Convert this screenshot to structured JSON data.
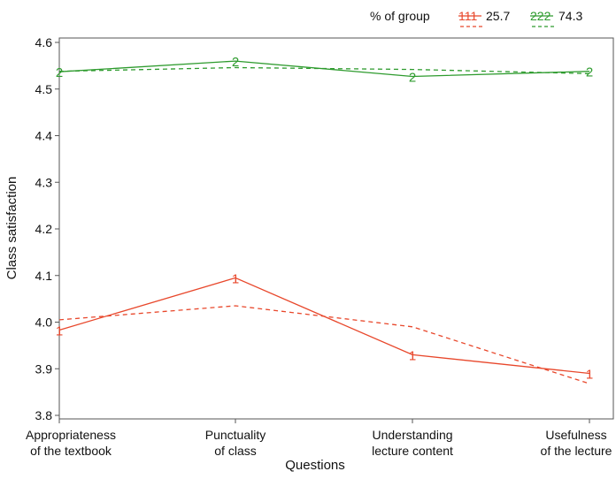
{
  "chart_data": {
    "type": "line",
    "xlabel": "Questions",
    "ylabel": "Class satisfaction",
    "ylim": [
      3.8,
      4.6
    ],
    "yticks": [
      "3.8",
      "3.9",
      "4.0",
      "4.1",
      "4.2",
      "4.3",
      "4.4",
      "4.5",
      "4.6"
    ],
    "categories": [
      [
        "Appropriateness",
        "of the textbook"
      ],
      [
        "Punctuality",
        "of class"
      ],
      [
        "Understanding",
        "lecture content"
      ],
      [
        "Usefulness",
        "of the lecture"
      ]
    ],
    "legend": {
      "title": "% of group",
      "entries": [
        {
          "symbol": "111",
          "value": "25.7"
        },
        {
          "symbol": "222",
          "value": "74.3"
        }
      ]
    },
    "series": [
      {
        "name": "1",
        "marker": "1",
        "color": "#e8472b",
        "style": "solid",
        "values": [
          3.983,
          4.095,
          3.93,
          3.89
        ]
      },
      {
        "name": "1 fitted",
        "color": "#e8472b",
        "style": "dashed",
        "values": [
          4.005,
          4.035,
          3.99,
          3.868
        ]
      },
      {
        "name": "2",
        "marker": "2",
        "color": "#2e9b2e",
        "style": "solid",
        "values": [
          4.537,
          4.56,
          4.527,
          4.538
        ]
      },
      {
        "name": "2 fitted",
        "color": "#2e9b2e",
        "style": "dashed",
        "values": [
          4.538,
          4.546,
          4.542,
          4.533
        ]
      }
    ]
  }
}
